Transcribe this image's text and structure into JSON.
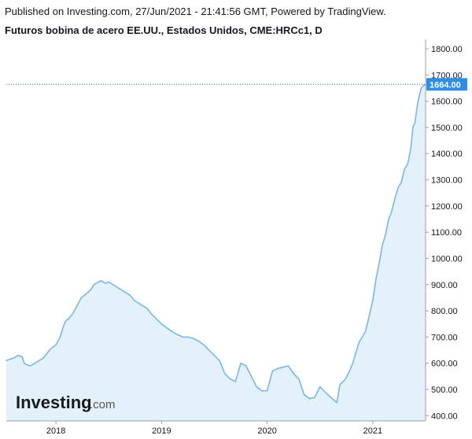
{
  "header": {
    "published": "Published on Investing.com, 27/Jun/2021 - 21:41:56 GMT, Powered by TradingView.",
    "title": "Futuros bobina de acero EE.UU., Estados Unidos, CME:HRCc1, D"
  },
  "logo": {
    "main": "Investing",
    "suffix": ".com"
  },
  "colors": {
    "line": "#7ab6e6",
    "fill": "#e3f1fb",
    "last_price_bg": "#2e8ee6",
    "last_price_line": "#2e6fc4",
    "axis": "#9aa0a6"
  },
  "chart_data": {
    "type": "area",
    "last_price_label": "1664.00",
    "ylim": [
      380,
      1830
    ],
    "y_ticks": [
      {
        "value": 400,
        "label": "400.00"
      },
      {
        "value": 500,
        "label": "500.00"
      },
      {
        "value": 600,
        "label": "600.00"
      },
      {
        "value": 700,
        "label": "700.00"
      },
      {
        "value": 800,
        "label": "800.00"
      },
      {
        "value": 900,
        "label": "900.00"
      },
      {
        "value": 1000,
        "label": "1000.00"
      },
      {
        "value": 1100,
        "label": "1100.00"
      },
      {
        "value": 1200,
        "label": "1200.00"
      },
      {
        "value": 1300,
        "label": "1300.00"
      },
      {
        "value": 1400,
        "label": "1400.00"
      },
      {
        "value": 1500,
        "label": "1500.00"
      },
      {
        "value": 1600,
        "label": "1600.00"
      },
      {
        "value": 1700,
        "label": "1700.00"
      },
      {
        "value": 1800,
        "label": "1800.00"
      }
    ],
    "x_ticks": [
      {
        "value": 2018.0,
        "label": "2018"
      },
      {
        "value": 2019.0,
        "label": "2019"
      },
      {
        "value": 2020.0,
        "label": "2020"
      },
      {
        "value": 2021.0,
        "label": "2021"
      }
    ],
    "xlim": [
      2017.53,
      2021.5
    ],
    "x": [
      2017.53,
      2017.56,
      2017.6,
      2017.64,
      2017.68,
      2017.7,
      2017.72,
      2017.76,
      2017.8,
      2017.84,
      2017.88,
      2017.92,
      2017.95,
      2018.0,
      2018.04,
      2018.07,
      2018.09,
      2018.12,
      2018.16,
      2018.2,
      2018.24,
      2018.27,
      2018.3,
      2018.33,
      2018.36,
      2018.4,
      2018.43,
      2018.47,
      2018.5,
      2018.54,
      2018.58,
      2018.62,
      2018.66,
      2018.7,
      2018.74,
      2018.78,
      2018.82,
      2018.86,
      2018.9,
      2018.95,
      2019.0,
      2019.05,
      2019.1,
      2019.15,
      2019.2,
      2019.25,
      2019.3,
      2019.35,
      2019.4,
      2019.45,
      2019.5,
      2019.55,
      2019.6,
      2019.65,
      2019.7,
      2019.75,
      2019.8,
      2019.85,
      2019.9,
      2019.95,
      2020.0,
      2020.05,
      2020.1,
      2020.15,
      2020.2,
      2020.25,
      2020.3,
      2020.35,
      2020.4,
      2020.45,
      2020.5,
      2020.55,
      2020.6,
      2020.63,
      2020.66,
      2020.69,
      2020.72,
      2020.75,
      2020.78,
      2020.81,
      2020.84,
      2020.87,
      2020.9,
      2020.93,
      2020.96,
      2021.0,
      2021.03,
      2021.06,
      2021.09,
      2021.12,
      2021.15,
      2021.18,
      2021.21,
      2021.24,
      2021.27,
      2021.3,
      2021.33,
      2021.36,
      2021.38,
      2021.4,
      2021.42,
      2021.44,
      2021.46,
      2021.48,
      2021.5
    ],
    "values": [
      610,
      615,
      620,
      630,
      625,
      600,
      595,
      590,
      600,
      610,
      620,
      640,
      655,
      670,
      700,
      740,
      760,
      770,
      790,
      820,
      850,
      860,
      870,
      880,
      900,
      910,
      915,
      905,
      910,
      900,
      890,
      880,
      870,
      860,
      840,
      830,
      820,
      810,
      790,
      770,
      750,
      735,
      720,
      710,
      700,
      700,
      695,
      685,
      670,
      650,
      630,
      610,
      560,
      540,
      530,
      600,
      590,
      550,
      510,
      495,
      495,
      570,
      580,
      585,
      590,
      560,
      540,
      480,
      465,
      470,
      510,
      490,
      470,
      460,
      450,
      520,
      530,
      545,
      570,
      600,
      640,
      680,
      700,
      720,
      770,
      840,
      920,
      980,
      1050,
      1090,
      1150,
      1180,
      1230,
      1270,
      1290,
      1340,
      1360,
      1420,
      1500,
      1520,
      1580,
      1620,
      1650,
      1660,
      1664
    ]
  }
}
